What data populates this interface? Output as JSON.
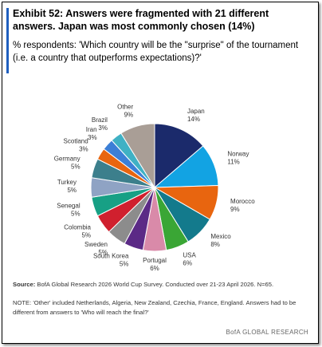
{
  "chart_data": {
    "type": "pie",
    "title": "Exhibit 52: Answers were fragmented with 21 different answers. Japan was most commonly chosen (14%)",
    "subtitle": "% respondents: 'Which country will be the \"surprise\" of the tournament (i.e. a country that outperforms expectations)?'",
    "categories": [
      "Japan",
      "Norway",
      "Morocco",
      "Mexico",
      "USA",
      "Portugal",
      "South Korea",
      "Sweden",
      "Colombia",
      "Senegal",
      "Turkey",
      "Germany",
      "Scotland",
      "Iran",
      "Brazil",
      "Other"
    ],
    "values": [
      14,
      11,
      9,
      8,
      6,
      6,
      5,
      5,
      5,
      5,
      5,
      5,
      3,
      3,
      3,
      9
    ],
    "value_labels": [
      "14%",
      "11%",
      "9%",
      "8%",
      "6%",
      "6%",
      "5%",
      "5%",
      "5%",
      "5%",
      "5%",
      "5%",
      "3%",
      "3%",
      "3%",
      "9%"
    ],
    "colors": [
      "#1b2a6b",
      "#12a3e3",
      "#e8650f",
      "#137a8c",
      "#3aa635",
      "#d98aa9",
      "#5b2a86",
      "#8c8c8c",
      "#d0202e",
      "#17a085",
      "#8fa3c4",
      "#3c7f8c",
      "#e8650f",
      "#3c7fd6",
      "#3fb1c4",
      "#a99e96"
    ],
    "source_label": "Source:",
    "source": "BofA Global Research 2026 World Cup Survey. Conducted over 21-23 April 2026. N=65.",
    "note": "NOTE: 'Other' included Netherlands, Algeria, New Zealand, Czechia, France, England. Answers had to be different from answers to 'Who will reach the final?'",
    "brand": "BofA GLOBAL RESEARCH"
  }
}
